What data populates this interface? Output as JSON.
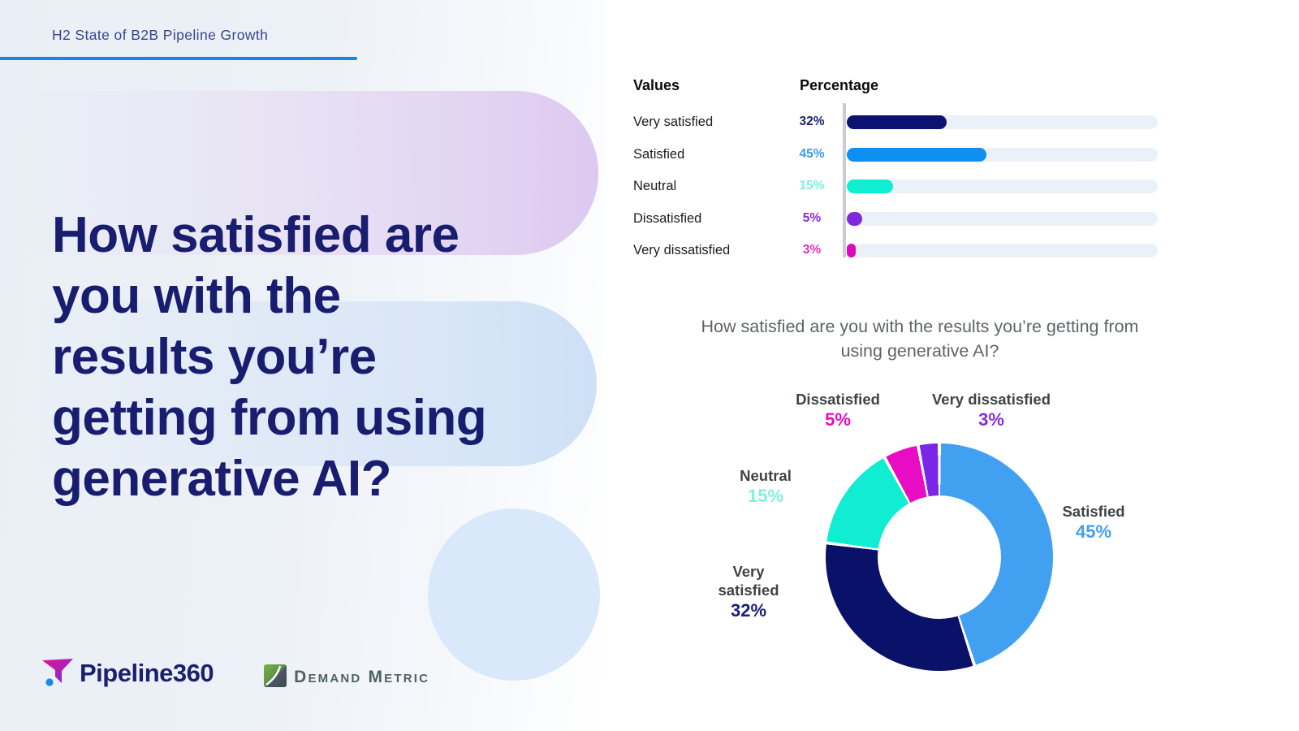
{
  "header": {
    "title": "H2 State of B2B Pipeline Growth"
  },
  "main_title": "How satisfied are\nyou with the\nresults you’re\ngetting from using\ngenerative AI?",
  "footer": {
    "pipeline_brand": "Pipeline360",
    "demand_metric_brand": "Demand Metric",
    "icons": [
      "pipeline360-funnel-logo-mark",
      "demand-metric-swoosh-logo-mark"
    ]
  },
  "colors": {
    "accent_underline": "#1687E8",
    "title_navy": "#191D70",
    "header_navy": "#3A4490",
    "track": "#EAF1F8",
    "axis_line": "#C9CDD3"
  },
  "chart_data": [
    {
      "type": "bar",
      "orientation": "horizontal",
      "columns": [
        "Values",
        "Percentage"
      ],
      "categories": [
        "Very satisfied",
        "Satisfied",
        "Neutral",
        "Dissatisfied",
        "Very dissatisfied"
      ],
      "values": [
        32,
        45,
        15,
        5,
        3
      ],
      "value_labels": [
        "32%",
        "45%",
        "15%",
        "5%",
        "3%"
      ],
      "bar_colors": [
        "#0B1272",
        "#0E8FF2",
        "#0FEED3",
        "#8128DF",
        "#DC0ABF"
      ],
      "value_label_colors": [
        "#1B2173",
        "#3D9BF0",
        "#7FF0E1",
        "#8A2BE2",
        "#E331BE"
      ],
      "xlim": [
        0,
        100
      ],
      "grid": false,
      "legend": "none"
    },
    {
      "type": "pie",
      "subtype": "donut",
      "title": "How satisfied are you with the results you’re getting from using generative AI?",
      "labels": [
        "Satisfied",
        "Very satisfied",
        "Neutral",
        "Dissatisfied",
        "Very dissatisfied"
      ],
      "values": [
        45,
        32,
        15,
        5,
        3
      ],
      "value_labels": [
        "45%",
        "32%",
        "15%",
        "5%",
        "3%"
      ],
      "slice_colors": [
        "#42A0F0",
        "#0A1168",
        "#10EDD3",
        "#E80CC4",
        "#7A25E8"
      ],
      "pct_label_colors": [
        "#42A0F0",
        "#1B2173",
        "#7FF0E1",
        "#E80CC4",
        "#8A2BE2"
      ],
      "start_angle_deg": 0,
      "direction": "clockwise",
      "inner_radius_ratio": 0.54,
      "slice_gap_deg": 1.6,
      "legend": "callout-labels"
    }
  ]
}
